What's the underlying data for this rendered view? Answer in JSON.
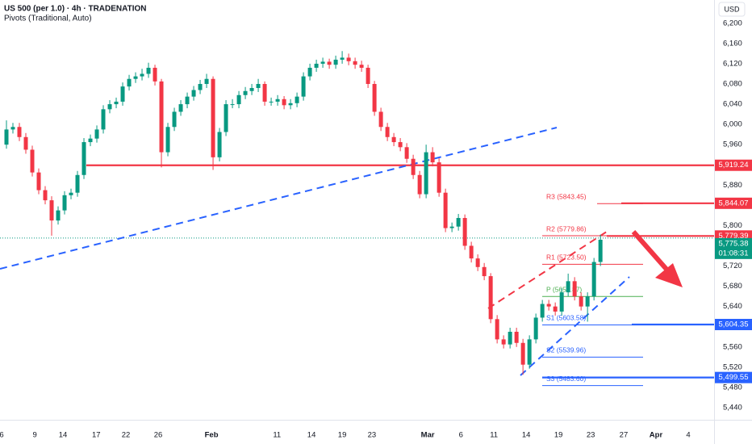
{
  "chart_data": {
    "type": "candlestick",
    "title": "US 500 (per 1.0) · 4h · TRADENATION",
    "subtitle": "Pivots (Traditional, Auto)",
    "currency": "USD",
    "up_color": "#089981",
    "down_color": "#f23645",
    "x": [
      1,
      2,
      3,
      4,
      5,
      6,
      7,
      8,
      9,
      10,
      11,
      12,
      13,
      14,
      15,
      16,
      17,
      18,
      19,
      20,
      21,
      22,
      23,
      24,
      25,
      26,
      27,
      28,
      29,
      30,
      31,
      32,
      33,
      34,
      35,
      36,
      37,
      38,
      39,
      40,
      41,
      42,
      43,
      44,
      45,
      46,
      47,
      48,
      49,
      50,
      51,
      52,
      53,
      54,
      55,
      56,
      57,
      58,
      59,
      60,
      61,
      62,
      63,
      64,
      65,
      66,
      67,
      68,
      69,
      70,
      71,
      72,
      73,
      74,
      75,
      76,
      77,
      78,
      79,
      80,
      81,
      82,
      83,
      84,
      85,
      86,
      87,
      88,
      89,
      90,
      91,
      92,
      93
    ],
    "open": [
      5960,
      5990,
      5995,
      5975,
      5950,
      5905,
      5870,
      5850,
      5810,
      5830,
      5860,
      5865,
      5900,
      5965,
      5972,
      5990,
      6030,
      6040,
      6045,
      6075,
      6090,
      6095,
      6100,
      6112,
      6085,
      5945,
      5995,
      6025,
      6040,
      6055,
      6068,
      6080,
      6090,
      5935,
      5985,
      6040,
      6040,
      6058,
      6066,
      6072,
      6080,
      6045,
      6045,
      6050,
      6038,
      6042,
      6055,
      6095,
      6112,
      6120,
      6124,
      6118,
      6128,
      6132,
      6125,
      6118,
      6112,
      6080,
      6025,
      5995,
      5975,
      5965,
      5955,
      5932,
      5900,
      5862,
      5945,
      5925,
      5865,
      5795,
      5798,
      5815,
      5760,
      5735,
      5718,
      5700,
      5615,
      5575,
      5565,
      5590,
      5568,
      5525,
      5575,
      5618,
      5645,
      5640,
      5630,
      5668,
      5690,
      5660,
      5640,
      5660,
      5728
    ],
    "high": [
      6008,
      6003,
      6003,
      5983,
      5958,
      5913,
      5878,
      5858,
      5838,
      5868,
      5873,
      5908,
      5973,
      5980,
      5998,
      6038,
      6048,
      6053,
      6083,
      6098,
      6103,
      6110,
      6122,
      6118,
      6090,
      6003,
      6033,
      6048,
      6063,
      6076,
      6088,
      6100,
      6095,
      5993,
      6048,
      6050,
      6066,
      6074,
      6080,
      6090,
      6085,
      6053,
      6058,
      6056,
      6050,
      6063,
      6103,
      6120,
      6128,
      6132,
      6130,
      6136,
      6145,
      6140,
      6132,
      6126,
      6118,
      6086,
      6033,
      6003,
      5983,
      5973,
      5963,
      5940,
      5908,
      5960,
      5955,
      5933,
      5873,
      5806,
      5823,
      5822,
      5768,
      5743,
      5726,
      5706,
      5623,
      5583,
      5598,
      5598,
      5576,
      5583,
      5626,
      5653,
      5653,
      5648,
      5676,
      5705,
      5698,
      5668,
      5668,
      5736,
      5782
    ],
    "low": [
      5952,
      5982,
      5967,
      5942,
      5897,
      5862,
      5842,
      5780,
      5802,
      5822,
      5852,
      5857,
      5892,
      5957,
      5964,
      5982,
      6022,
      6032,
      6037,
      6067,
      6082,
      6087,
      6092,
      6077,
      5915,
      5937,
      5987,
      6017,
      6032,
      6047,
      6060,
      6072,
      5910,
      5927,
      5977,
      6032,
      6032,
      6050,
      6058,
      6064,
      6037,
      6037,
      6037,
      6030,
      6030,
      6034,
      6047,
      6087,
      6104,
      6112,
      6110,
      6110,
      6120,
      6117,
      6110,
      6104,
      6072,
      6017,
      5987,
      5967,
      5957,
      5947,
      5924,
      5892,
      5854,
      5854,
      5917,
      5857,
      5787,
      5787,
      5790,
      5752,
      5727,
      5710,
      5692,
      5607,
      5567,
      5557,
      5557,
      5560,
      5505,
      5517,
      5567,
      5610,
      5632,
      5622,
      5622,
      5660,
      5652,
      5632,
      5610,
      5652,
      5720
    ],
    "close": [
      5990,
      5995,
      5975,
      5950,
      5905,
      5870,
      5850,
      5810,
      5830,
      5860,
      5865,
      5900,
      5965,
      5972,
      5990,
      6030,
      6040,
      6045,
      6075,
      6090,
      6095,
      6100,
      6112,
      6085,
      5945,
      5995,
      6025,
      6040,
      6055,
      6068,
      6080,
      6090,
      5935,
      5985,
      6040,
      6040,
      6058,
      6066,
      6072,
      6080,
      6045,
      6045,
      6050,
      6038,
      6042,
      6055,
      6095,
      6112,
      6120,
      6124,
      6118,
      6128,
      6132,
      6125,
      6118,
      6112,
      6080,
      6025,
      5995,
      5975,
      5965,
      5955,
      5932,
      5900,
      5862,
      5945,
      5925,
      5865,
      5795,
      5798,
      5815,
      5760,
      5735,
      5718,
      5700,
      5615,
      5575,
      5565,
      5590,
      5568,
      5525,
      5575,
      5618,
      5645,
      5640,
      5630,
      5668,
      5690,
      5660,
      5640,
      5660,
      5728,
      5772
    ],
    "xlim": [
      0,
      110.6
    ],
    "xticks": [
      {
        "value": 0.25,
        "label": "6"
      },
      {
        "value": 5.4,
        "label": "9"
      },
      {
        "value": 9.75,
        "label": "14"
      },
      {
        "value": 14.9,
        "label": "17"
      },
      {
        "value": 19.5,
        "label": "22"
      },
      {
        "value": 24.5,
        "label": "26"
      },
      {
        "value": 32.75,
        "label": "Feb"
      },
      {
        "value": 42.9,
        "label": "11"
      },
      {
        "value": 48.25,
        "label": "14"
      },
      {
        "value": 53,
        "label": "19"
      },
      {
        "value": 57.6,
        "label": "23"
      },
      {
        "value": 66.25,
        "label": "Mar"
      },
      {
        "value": 71.4,
        "label": "6"
      },
      {
        "value": 76.5,
        "label": "11"
      },
      {
        "value": 81.5,
        "label": "14"
      },
      {
        "value": 86.5,
        "label": "19"
      },
      {
        "value": 91.5,
        "label": "23"
      },
      {
        "value": 96.6,
        "label": "27"
      },
      {
        "value": 101.6,
        "label": "Apr"
      },
      {
        "value": 106.6,
        "label": "4"
      }
    ],
    "ylim": [
      5416,
      6246
    ],
    "yticks": [
      {
        "value": 5440,
        "label": "5,440"
      },
      {
        "value": 5480,
        "label": "5,480"
      },
      {
        "value": 5520,
        "label": "5,520"
      },
      {
        "value": 5560,
        "label": "5,560"
      },
      {
        "value": 5600,
        "label": "5,600"
      },
      {
        "value": 5640,
        "label": "5,640"
      },
      {
        "value": 5680,
        "label": "5,680"
      },
      {
        "value": 5720,
        "label": "5,720"
      },
      {
        "value": 5760,
        "label": "5,760"
      },
      {
        "value": 5800,
        "label": "5,800"
      },
      {
        "value": 5840,
        "label": "5,840"
      },
      {
        "value": 5880,
        "label": "5,880"
      },
      {
        "value": 5920,
        "label": "5,920"
      },
      {
        "value": 5960,
        "label": "5,960"
      },
      {
        "value": 6000,
        "label": "6,000"
      },
      {
        "value": 6040,
        "label": "6,040"
      },
      {
        "value": 6080,
        "label": "6,080"
      },
      {
        "value": 6120,
        "label": "6,120"
      },
      {
        "value": 6160,
        "label": "6,160"
      },
      {
        "value": 6200,
        "label": "6,200"
      }
    ],
    "pivots": [
      {
        "value": 5843.45,
        "label": "R3 (5843.45)",
        "color": "#f23645"
      },
      {
        "value": 5779.86,
        "label": "R2 (5779.86)",
        "color": "#f23645"
      },
      {
        "value": 5723.5,
        "label": "R1 (5723.50)",
        "color": "#f23645"
      },
      {
        "value": 5659.87,
        "label": "P (5659.87)",
        "color": "#4caf50"
      },
      {
        "value": 5603.58,
        "label": "S1 (5603.58)",
        "color": "#2962ff"
      },
      {
        "value": 5539.96,
        "label": "S2 (5539.96)",
        "color": "#2962ff"
      },
      {
        "value": 5483.6,
        "label": "S3 (5483.60)",
        "color": "#2962ff"
      }
    ],
    "levels": [
      {
        "value": 5919.24,
        "label": "5,919.24",
        "color": "#f23645"
      },
      {
        "value": 5844.07,
        "label": "5,844.07",
        "color": "#f23645"
      },
      {
        "value": 5779.39,
        "label": "5,779.39",
        "color": "#f23645"
      },
      {
        "value": 5604.35,
        "label": "5,604.35",
        "color": "#2962ff"
      },
      {
        "value": 5499.55,
        "label": "5,499.55",
        "color": "#2962ff"
      }
    ],
    "last_price": {
      "value": 5775.38,
      "label": "5,775.38",
      "countdown": "01:08:31",
      "color": "#089981"
    }
  }
}
